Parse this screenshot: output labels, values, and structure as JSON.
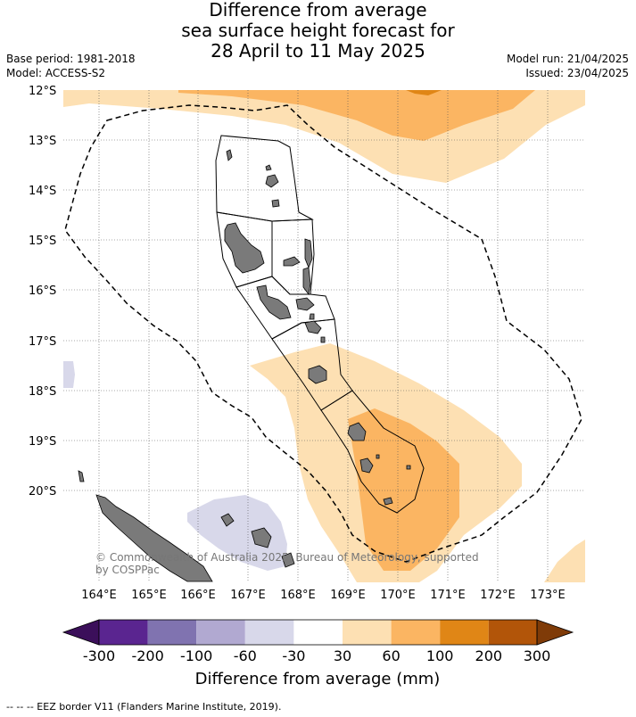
{
  "title": {
    "line1": "Difference from average",
    "line2": "sea surface height forecast for",
    "line3": "28 April to 11 May 2025"
  },
  "meta_left": {
    "base_period": "Base period: 1981-2018",
    "model": "Model: ACCESS-S2"
  },
  "meta_right": {
    "model_run": "Model run: 21/04/2025",
    "issued": "Issued: 23/04/2025"
  },
  "map": {
    "lat_labels": [
      "12°S",
      "13°S",
      "14°S",
      "15°S",
      "16°S",
      "17°S",
      "18°S",
      "19°S",
      "20°S"
    ],
    "lon_labels": [
      "164°E",
      "165°E",
      "166°E",
      "167°E",
      "168°E",
      "169°E",
      "170°E",
      "171°E",
      "172°E",
      "173°E"
    ],
    "copyright_line1": "© Commonwealth of Australia 2025, Bureau of Meteorology, supported",
    "copyright_line2": "by COSPPac",
    "gridlines": true
  },
  "colorbar": {
    "ticks": [
      "-300",
      "-200",
      "-100",
      "-60",
      "-30",
      "30",
      "60",
      "100",
      "200",
      "300"
    ],
    "colors": [
      "#3b0f5a",
      "#5a2590",
      "#8073b0",
      "#b1a9d1",
      "#d8d8ea",
      "#ffffff",
      "#fde0b3",
      "#fbb562",
      "#e08616",
      "#b25509",
      "#7f3b08"
    ],
    "title": "Difference from average (mm)"
  },
  "footer": "--  --  -- EEZ border V11 (Flanders Marine Institute, 2019)."
}
